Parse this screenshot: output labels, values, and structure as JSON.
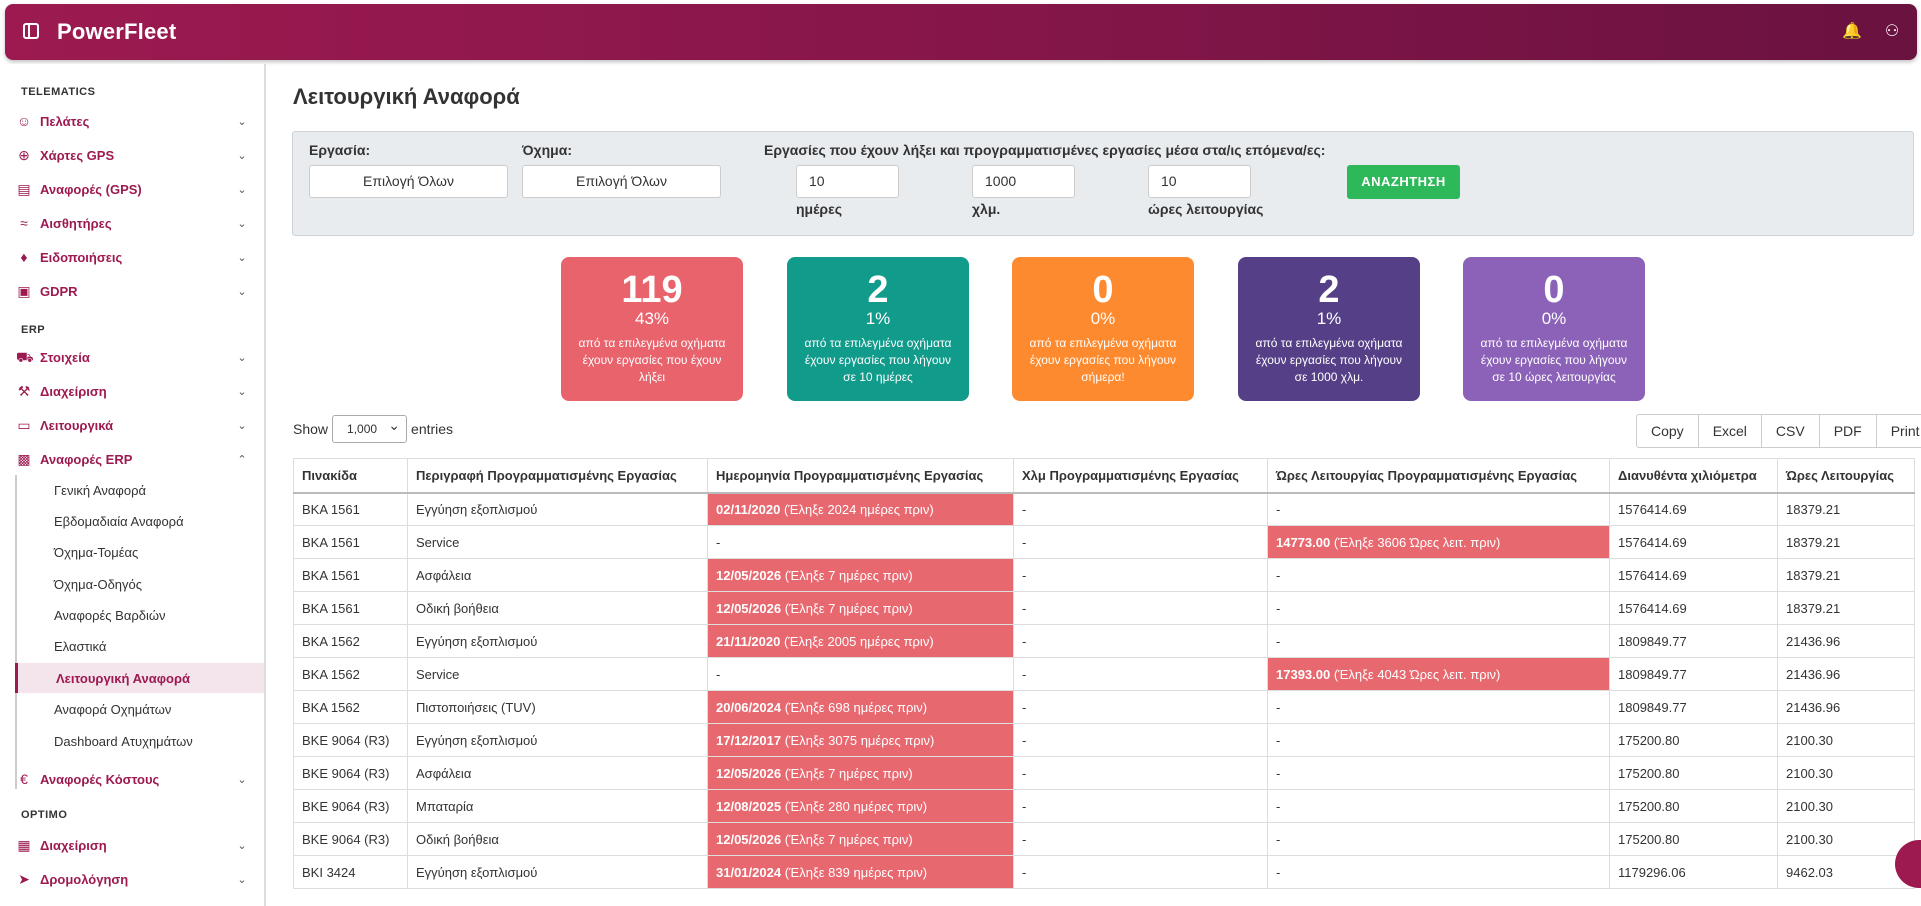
{
  "header": {
    "logo": "PowerFleet",
    "bell_icon": "bell-icon",
    "user_icon": "user-settings-icon"
  },
  "sidebar": {
    "section_telematics": "TELEMATICS",
    "telematics_items": [
      {
        "label": "Πελάτες",
        "icon": "users-icon"
      },
      {
        "label": "Χάρτες GPS",
        "icon": "crosshair-icon"
      },
      {
        "label": "Αναφορές (GPS)",
        "icon": "report-icon"
      },
      {
        "label": "Αισθητήρες",
        "icon": "wifi-icon"
      },
      {
        "label": "Ειδοποιήσεις",
        "icon": "bell-icon"
      },
      {
        "label": "GDPR",
        "icon": "lock-icon"
      }
    ],
    "section_erp": "ERP",
    "erp_items": [
      {
        "label": "Στοιχεία",
        "icon": "truck-icon"
      },
      {
        "label": "Διαχείριση",
        "icon": "wrench-icon"
      },
      {
        "label": "Λειτουργικά",
        "icon": "monitor-icon"
      },
      {
        "label": "Αναφορές ERP",
        "icon": "bar-chart-icon"
      }
    ],
    "erp_subitems": [
      "Γενική Αναφορά",
      "Εβδομαδιαία Αναφορά",
      "Όχημα-Τομέας",
      "Όχημα-Οδηγός",
      "Αναφορές Βαρδιών",
      "Ελαστικά",
      "Λειτουργική Αναφορά",
      "Αναφορά Οχημάτων",
      "Dashboard Ατυχημάτων"
    ],
    "cost_item": {
      "label": "Αναφορές Κόστους",
      "icon": "euro-icon"
    },
    "section_optimo": "OPTIMO",
    "optimo_items": [
      {
        "label": "Διαχείριση",
        "icon": "map-icon"
      },
      {
        "label": "Δρομολόγηση",
        "icon": "navigation-icon"
      }
    ]
  },
  "page": {
    "title": "Λειτουργική Αναφορά"
  },
  "filters": {
    "task_label": "Εργασία:",
    "task_value": "Επιλογή Όλων",
    "vehicle_label": "Όχημα:",
    "vehicle_value": "Επιλογή Όλων",
    "expiry_label": "Εργασίες που έχουν λήξει και προγραμματισμένες εργασίες μέσα στα/ις επόμενα/ες:",
    "days_value": "10",
    "days_unit": "ημέρες",
    "km_value": "1000",
    "km_unit": "χλμ.",
    "hours_value": "10",
    "hours_unit": "ώρες λειτουργίας",
    "search_button": "ΑΝΑΖΗΤΗΣΗ"
  },
  "stats": [
    {
      "count": "119",
      "percent": "43%",
      "text": "από τα επιλεγμένα οχήματα έχουν εργασίες που έχουν λήξει",
      "color": "#e8636b"
    },
    {
      "count": "2",
      "percent": "1%",
      "text": "από τα επιλεγμένα οχήματα έχουν εργασίες που λήγουν σε 10 ημέρες",
      "color": "#119b8b"
    },
    {
      "count": "0",
      "percent": "0%",
      "text": "από τα επιλεγμένα οχήματα έχουν εργασίες που λήγουν σήμερα!",
      "color": "#fd8a2e"
    },
    {
      "count": "2",
      "percent": "1%",
      "text": "από τα επιλεγμένα οχήματα έχουν εργασίες που λήγουν σε 1000 χλμ.",
      "color": "#554087"
    },
    {
      "count": "0",
      "percent": "0%",
      "text": "από τα επιλεγμένα οχήματα έχουν εργασίες που λήγουν σε 10 ώρες λειτουργίας",
      "color": "#8c62b8"
    }
  ],
  "table_controls": {
    "show_label": "Show",
    "show_value": "1,000",
    "entries_label": "entries",
    "buttons": [
      "Copy",
      "Excel",
      "CSV",
      "PDF",
      "Print"
    ]
  },
  "table": {
    "columns": [
      "Πινακίδα",
      "Περιγραφή Προγραμματισμένης Εργασίας",
      "Ημερομηνία Προγραμματισμένης Εργασίας",
      "Χλμ Προγραμματισμένης Εργασίας",
      "Ώρες Λειτουργίας Προγραμματισμένης Εργασίας",
      "Διανυθέντα χιλιόμετρα",
      "Ώρες Λειτουργίας"
    ],
    "rows": [
      {
        "plate": "BKA 1561",
        "desc": "Εγγύηση εξοπλισμού",
        "date_b": "02/11/2020",
        "date_t": " (Έληξε 2024 ημέρες πριν)",
        "km": "-",
        "hrs_b": "",
        "hrs_t": "-",
        "dist": "1576414.69",
        "hours": "18379.21"
      },
      {
        "plate": "BKA 1561",
        "desc": "Service",
        "date_b": "",
        "date_t": "-",
        "km": "-",
        "hrs_b": "14773.00",
        "hrs_t": " (Έληξε 3606 Ώρες λειτ. πριν)",
        "dist": "1576414.69",
        "hours": "18379.21"
      },
      {
        "plate": "BKA 1561",
        "desc": "Ασφάλεια",
        "date_b": "12/05/2026",
        "date_t": " (Έληξε 7 ημέρες πριν)",
        "km": "-",
        "hrs_b": "",
        "hrs_t": "-",
        "dist": "1576414.69",
        "hours": "18379.21"
      },
      {
        "plate": "BKA 1561",
        "desc": "Οδική βοήθεια",
        "date_b": "12/05/2026",
        "date_t": " (Έληξε 7 ημέρες πριν)",
        "km": "-",
        "hrs_b": "",
        "hrs_t": "-",
        "dist": "1576414.69",
        "hours": "18379.21"
      },
      {
        "plate": "BKA 1562",
        "desc": "Εγγύηση εξοπλισμού",
        "date_b": "21/11/2020",
        "date_t": " (Έληξε 2005 ημέρες πριν)",
        "km": "-",
        "hrs_b": "",
        "hrs_t": "-",
        "dist": "1809849.77",
        "hours": "21436.96"
      },
      {
        "plate": "BKA 1562",
        "desc": "Service",
        "date_b": "",
        "date_t": "-",
        "km": "-",
        "hrs_b": "17393.00",
        "hrs_t": " (Έληξε 4043 Ώρες λειτ. πριν)",
        "dist": "1809849.77",
        "hours": "21436.96"
      },
      {
        "plate": "BKA 1562",
        "desc": "Πιστοποιήσεις (TUV)",
        "date_b": "20/06/2024",
        "date_t": " (Έληξε 698 ημέρες πριν)",
        "km": "-",
        "hrs_b": "",
        "hrs_t": "-",
        "dist": "1809849.77",
        "hours": "21436.96"
      },
      {
        "plate": "BKE 9064 (R3)",
        "desc": "Εγγύηση εξοπλισμού",
        "date_b": "17/12/2017",
        "date_t": " (Έληξε 3075 ημέρες πριν)",
        "km": "-",
        "hrs_b": "",
        "hrs_t": "-",
        "dist": "175200.80",
        "hours": "2100.30"
      },
      {
        "plate": "BKE 9064 (R3)",
        "desc": "Ασφάλεια",
        "date_b": "12/05/2026",
        "date_t": " (Έληξε 7 ημέρες πριν)",
        "km": "-",
        "hrs_b": "",
        "hrs_t": "-",
        "dist": "175200.80",
        "hours": "2100.30"
      },
      {
        "plate": "BKE 9064 (R3)",
        "desc": "Μπαταρία",
        "date_b": "12/08/2025",
        "date_t": " (Έληξε 280 ημέρες πριν)",
        "km": "-",
        "hrs_b": "",
        "hrs_t": "-",
        "dist": "175200.80",
        "hours": "2100.30"
      },
      {
        "plate": "BKE 9064 (R3)",
        "desc": "Οδική βοήθεια",
        "date_b": "12/05/2026",
        "date_t": " (Έληξε 7 ημέρες πριν)",
        "km": "-",
        "hrs_b": "",
        "hrs_t": "-",
        "dist": "175200.80",
        "hours": "2100.30"
      },
      {
        "plate": "BKI 3424",
        "desc": "Εγγύηση εξοπλισμού",
        "date_b": "31/01/2024",
        "date_t": " (Έληξε 839 ημέρες πριν)",
        "km": "-",
        "hrs_b": "",
        "hrs_t": "-",
        "dist": "1179296.06",
        "hours": "9462.03"
      }
    ]
  }
}
